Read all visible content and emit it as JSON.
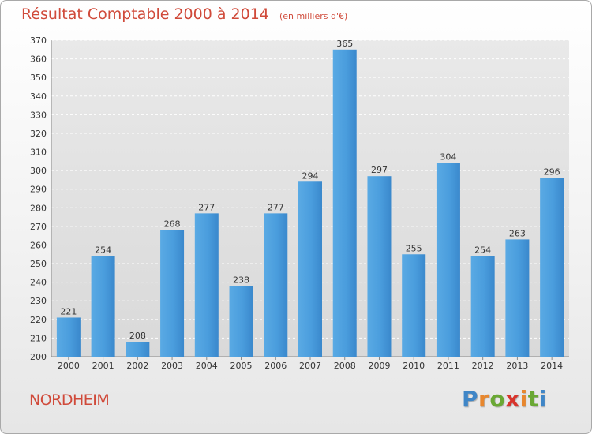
{
  "chart_data": {
    "type": "bar",
    "title": "Résultat Comptable 2000 à 2014",
    "subtitle": "(en milliers d'€)",
    "categories": [
      "2000",
      "2001",
      "2002",
      "2003",
      "2004",
      "2005",
      "2006",
      "2007",
      "2008",
      "2009",
      "2010",
      "2011",
      "2012",
      "2013",
      "2014"
    ],
    "values": [
      221,
      254,
      208,
      268,
      277,
      238,
      277,
      294,
      365,
      297,
      255,
      304,
      254,
      263,
      296
    ],
    "ylim": [
      200,
      370
    ],
    "yticks": [
      200,
      210,
      220,
      230,
      240,
      250,
      260,
      270,
      280,
      290,
      300,
      310,
      320,
      330,
      340,
      350,
      360,
      370
    ],
    "grid": true,
    "bar_color": "#3d8fd4",
    "title_color": "#d04a3a"
  },
  "place_name": "NORDHEIM",
  "logo": {
    "letters": [
      "P",
      "r",
      "o",
      "x",
      "i",
      "t",
      "i"
    ],
    "colors": [
      "#3f86c7",
      "#e8872e",
      "#6aa834",
      "#d8342c",
      "#e8872e",
      "#6aa834",
      "#3f86c7"
    ]
  }
}
